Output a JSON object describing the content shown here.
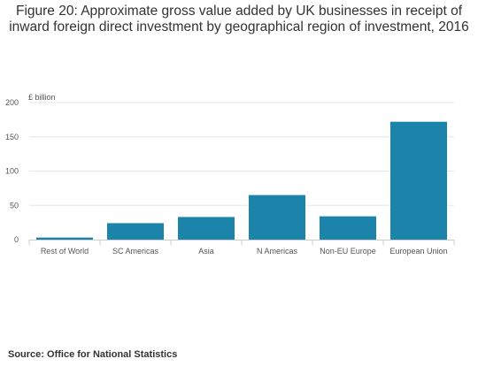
{
  "title": "Figure 20: Approximate gross value added by UK businesses in receipt of inward foreign direct investment by geographical region of investment, 2016",
  "source": "Source: Office for National Statistics",
  "colors": {
    "bar": "#1c84aa",
    "grid": "#e5e5e5",
    "axis": "#cccccc",
    "text": "#333333",
    "tick_text": "#555555"
  },
  "chart_data": {
    "type": "bar",
    "title": "Figure 20: Approximate gross value added by UK businesses in receipt of inward foreign direct investment by geographical region of investment, 2016",
    "xlabel": "",
    "ylabel": "£ billion",
    "categories": [
      "Rest of World",
      "SC Americas",
      "Asia",
      "N Americas",
      "Non-EU Europe",
      "European Union"
    ],
    "values": [
      3,
      24,
      33,
      65,
      34,
      172
    ],
    "ylim": [
      0,
      200
    ],
    "yticks": [
      0,
      50,
      100,
      150,
      200
    ],
    "grid": true,
    "legend": "none"
  }
}
